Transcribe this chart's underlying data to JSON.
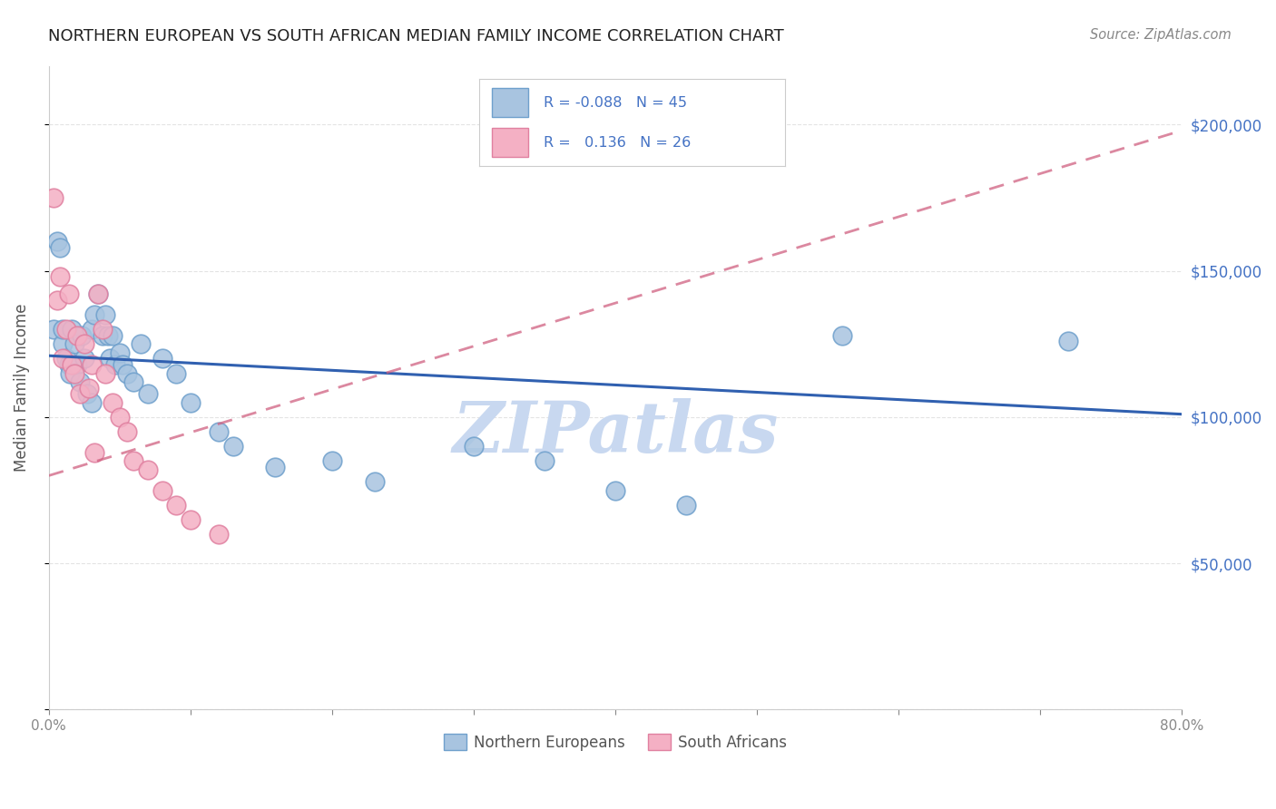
{
  "title": "NORTHERN EUROPEAN VS SOUTH AFRICAN MEDIAN FAMILY INCOME CORRELATION CHART",
  "source": "Source: ZipAtlas.com",
  "ylabel": "Median Family Income",
  "xlim": [
    0.0,
    0.8
  ],
  "ylim": [
    0,
    220000
  ],
  "ytick_labels_right": [
    "$50,000",
    "$100,000",
    "$150,000",
    "$200,000"
  ],
  "ytick_values_right": [
    50000,
    100000,
    150000,
    200000
  ],
  "background_color": "#ffffff",
  "plot_bg_color": "#ffffff",
  "grid_color": "#d8d8d8",
  "color_northern": "#a8c4e0",
  "color_northern_edge": "#6fa0cc",
  "color_southern": "#f4b0c4",
  "color_southern_edge": "#e080a0",
  "trendline_northern_color": "#3060b0",
  "trendline_southern_color": "#d06080",
  "watermark": "ZIPatlas",
  "watermark_color": "#c8d8f0",
  "northern_x": [
    0.003,
    0.006,
    0.008,
    0.01,
    0.01,
    0.012,
    0.014,
    0.015,
    0.016,
    0.018,
    0.02,
    0.022,
    0.023,
    0.025,
    0.027,
    0.03,
    0.03,
    0.032,
    0.035,
    0.038,
    0.04,
    0.042,
    0.043,
    0.045,
    0.047,
    0.05,
    0.052,
    0.055,
    0.06,
    0.065,
    0.07,
    0.08,
    0.09,
    0.1,
    0.12,
    0.13,
    0.16,
    0.2,
    0.23,
    0.3,
    0.35,
    0.4,
    0.45,
    0.56,
    0.72
  ],
  "northern_y": [
    130000,
    160000,
    158000,
    125000,
    130000,
    120000,
    118000,
    115000,
    130000,
    125000,
    118000,
    112000,
    128000,
    120000,
    108000,
    130000,
    105000,
    135000,
    142000,
    128000,
    135000,
    128000,
    120000,
    128000,
    118000,
    122000,
    118000,
    115000,
    112000,
    125000,
    108000,
    120000,
    115000,
    105000,
    95000,
    90000,
    83000,
    85000,
    78000,
    90000,
    85000,
    75000,
    70000,
    128000,
    126000
  ],
  "southern_x": [
    0.003,
    0.006,
    0.008,
    0.01,
    0.012,
    0.014,
    0.016,
    0.018,
    0.02,
    0.022,
    0.025,
    0.028,
    0.03,
    0.032,
    0.035,
    0.038,
    0.04,
    0.045,
    0.05,
    0.055,
    0.06,
    0.07,
    0.08,
    0.09,
    0.1,
    0.12
  ],
  "southern_y": [
    175000,
    140000,
    148000,
    120000,
    130000,
    142000,
    118000,
    115000,
    128000,
    108000,
    125000,
    110000,
    118000,
    88000,
    142000,
    130000,
    115000,
    105000,
    100000,
    95000,
    85000,
    82000,
    75000,
    70000,
    65000,
    60000
  ],
  "trendline_blue_x0": 0.0,
  "trendline_blue_y0": 121000,
  "trendline_blue_x1": 0.8,
  "trendline_blue_y1": 101000,
  "trendline_pink_x0": 0.0,
  "trendline_pink_y0": 80000,
  "trendline_pink_x1": 0.8,
  "trendline_pink_y1": 198000
}
